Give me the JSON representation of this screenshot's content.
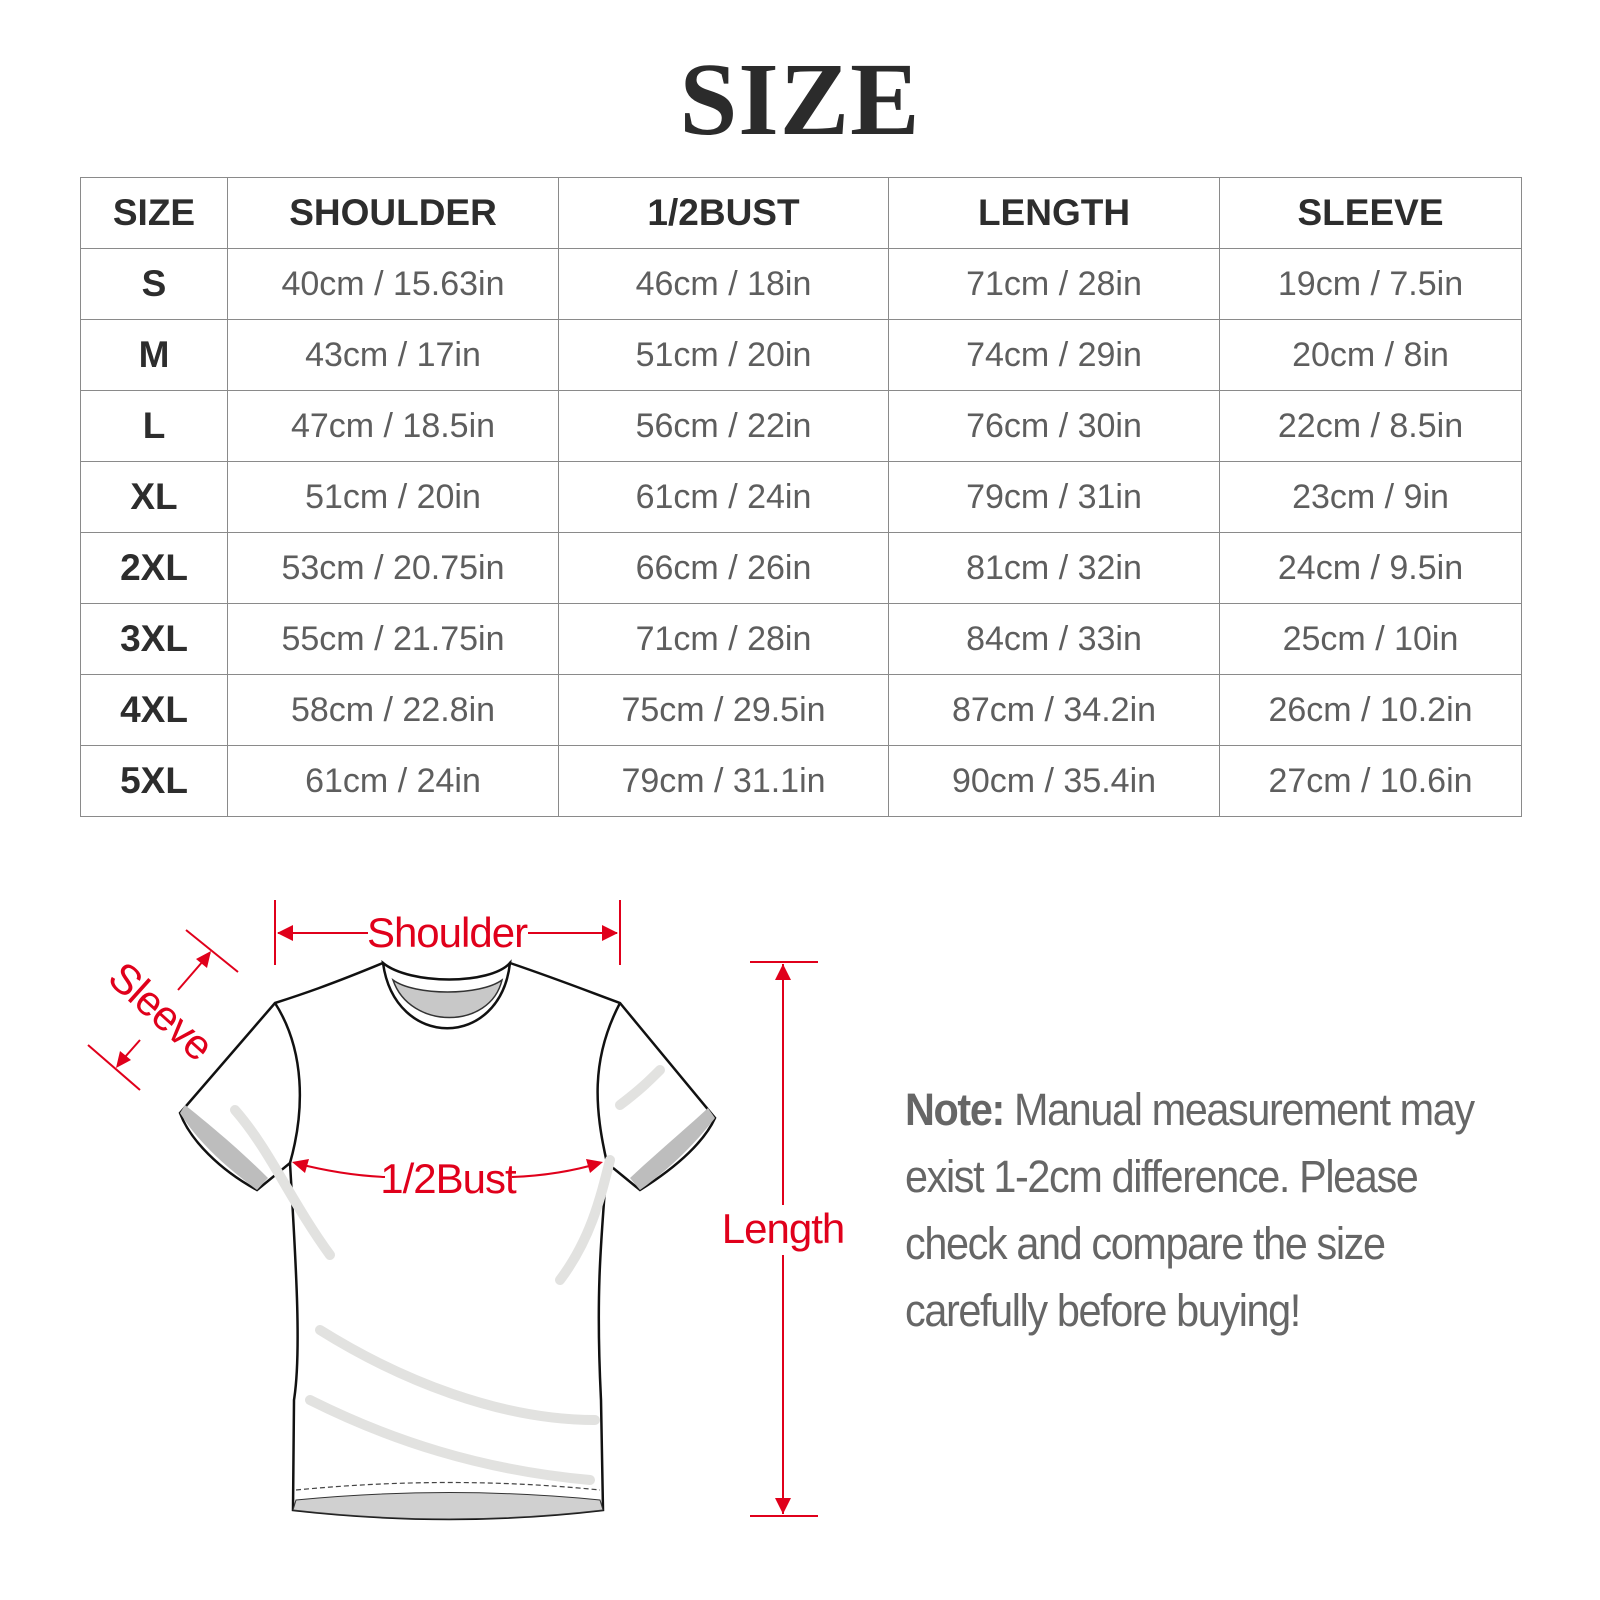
{
  "title": "SIZE",
  "table": {
    "headers": [
      "SIZE",
      "SHOULDER",
      "1/2BUST",
      "LENGTH",
      "SLEEVE"
    ],
    "rows": [
      [
        "S",
        "40cm / 15.63in",
        "46cm / 18in",
        "71cm / 28in",
        "19cm / 7.5in"
      ],
      [
        "M",
        "43cm / 17in",
        "51cm / 20in",
        "74cm / 29in",
        "20cm / 8in"
      ],
      [
        "L",
        "47cm / 18.5in",
        "56cm / 22in",
        "76cm / 30in",
        "22cm / 8.5in"
      ],
      [
        "XL",
        "51cm / 20in",
        "61cm / 24in",
        "79cm / 31in",
        "23cm / 9in"
      ],
      [
        "2XL",
        "53cm / 20.75in",
        "66cm / 26in",
        "81cm / 32in",
        "24cm / 9.5in"
      ],
      [
        "3XL",
        "55cm / 21.75in",
        "71cm / 28in",
        "84cm / 33in",
        "25cm / 10in"
      ],
      [
        "4XL",
        "58cm / 22.8in",
        "75cm / 29.5in",
        "87cm / 34.2in",
        "26cm / 10.2in"
      ],
      [
        "5XL",
        "61cm / 24in",
        "79cm / 31.1in",
        "90cm / 35.4in",
        "27cm / 10.6in"
      ]
    ]
  },
  "diagram": {
    "shoulder_label": "Shoulder",
    "sleeve_label": "Sleeve",
    "bust_label": "1/2Bust",
    "length_label": "Length",
    "annotation_color": "#e0001b"
  },
  "note": {
    "label": "Note:",
    "text": " Manual measurement may exist 1-2cm difference. Please check and compare the size carefully before buying!"
  }
}
